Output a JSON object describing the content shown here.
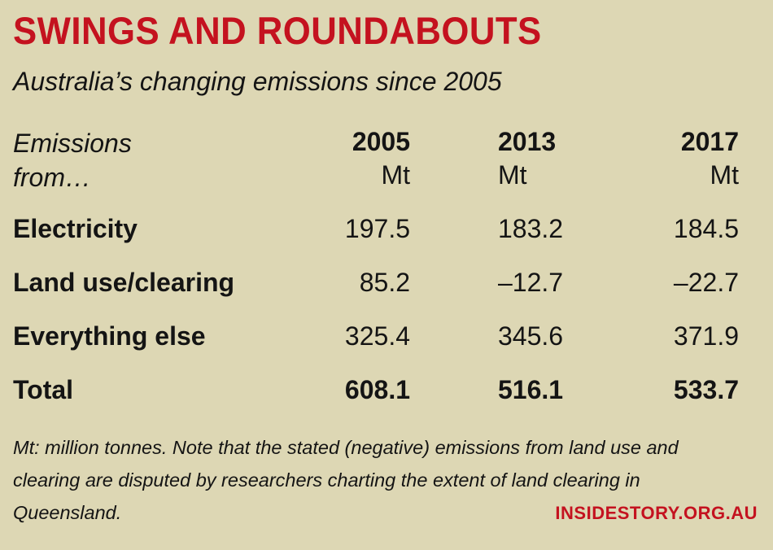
{
  "chart_data": {
    "type": "table",
    "title": "SWINGS AND ROUNDABOUTS",
    "subtitle": "Australia’s changing emissions since 2005",
    "header_label": [
      "Emissions",
      "from…"
    ],
    "columns": [
      {
        "year": "2005",
        "unit": "Mt"
      },
      {
        "year": "2013",
        "unit": "Mt"
      },
      {
        "year": "2017",
        "unit": "Mt"
      }
    ],
    "rows": [
      {
        "label": "Electricity",
        "values": [
          "197.5",
          "183.2",
          "184.5"
        ],
        "bold": false
      },
      {
        "label": "Land use/clearing",
        "values": [
          "85.2",
          "–12.7",
          "–22.7"
        ],
        "bold": false
      },
      {
        "label": "Everything else",
        "values": [
          "325.4",
          "345.6",
          "371.9"
        ],
        "bold": false
      },
      {
        "label": "Total",
        "values": [
          "608.1",
          "516.1",
          "533.7"
        ],
        "bold": true
      }
    ],
    "note": "Mt: million tonnes. Note that the stated (negative) emissions from land use and clearing are disputed by researchers charting the extent of land clearing in Queensland.",
    "source": "INSIDESTORY.ORG.AU"
  },
  "colors": {
    "background": "#ddd7b4",
    "title": "#c4121f",
    "text": "#141414"
  }
}
